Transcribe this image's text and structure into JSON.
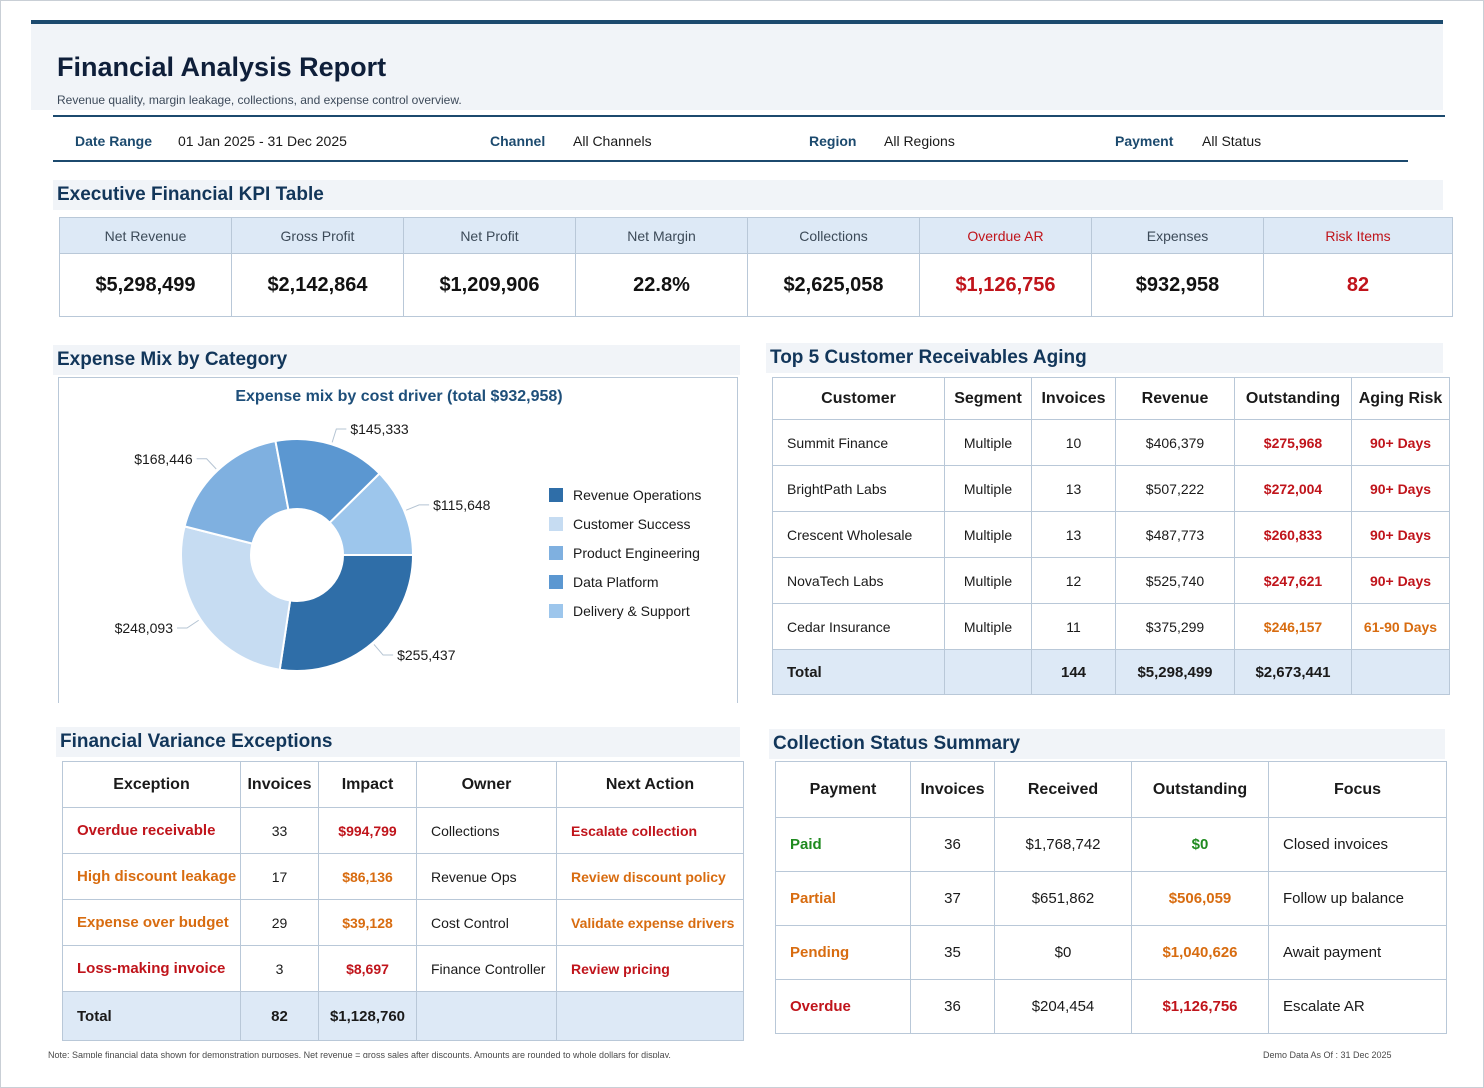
{
  "header": {
    "title": "Financial Analysis Report",
    "subtitle": "Revenue quality, margin leakage, collections, and expense control overview."
  },
  "filters": [
    {
      "label": "Date Range",
      "value": "01 Jan 2025 - 31 Dec 2025"
    },
    {
      "label": "Channel",
      "value": "All Channels"
    },
    {
      "label": "Region",
      "value": "All Regions"
    },
    {
      "label": "Payment",
      "value": "All Status"
    }
  ],
  "kpi": {
    "section_title": "Executive Financial KPI Table",
    "headers": [
      "Net Revenue",
      "Gross Profit",
      "Net Profit",
      "Net Margin",
      "Collections",
      "Overdue AR",
      "Expenses",
      "Risk Items"
    ],
    "values": [
      "$5,298,499",
      "$2,142,864",
      "$1,209,906",
      "22.8%",
      "$2,625,058",
      "$1,126,756",
      "$932,958",
      "82"
    ],
    "alert_color": "#c0141b"
  },
  "expense_mix": {
    "section_title": "Expense Mix by Category"
  },
  "chart_data": {
    "type": "pie",
    "title": "Expense mix by cost driver (total $932,958)",
    "categories": [
      "Revenue Operations",
      "Customer Success",
      "Product Engineering",
      "Data Platform",
      "Delivery & Support"
    ],
    "values": [
      255437,
      248093,
      168446,
      145333,
      115648
    ],
    "value_labels": [
      "$255,437",
      "$248,093",
      "$168,446",
      "$145,333",
      "$115,648"
    ],
    "colors": [
      "#2f6ea8",
      "#c6dcf2",
      "#7fb0e0",
      "#5b97d1",
      "#9dc6ec"
    ],
    "donut": true,
    "legend": "right"
  },
  "receivables": {
    "section_title": "Top 5 Customer Receivables Aging",
    "headers": [
      "Customer",
      "Segment",
      "Invoices",
      "Revenue",
      "Outstanding",
      "Aging Risk"
    ],
    "rows": [
      [
        "Summit Finance",
        "Multiple",
        "10",
        "$406,379",
        "$275,968",
        "90+ Days"
      ],
      [
        "BrightPath Labs",
        "Multiple",
        "13",
        "$507,222",
        "$272,004",
        "90+ Days"
      ],
      [
        "Crescent Wholesale",
        "Multiple",
        "13",
        "$487,773",
        "$260,833",
        "90+ Days"
      ],
      [
        "NovaTech Labs",
        "Multiple",
        "12",
        "$525,740",
        "$247,621",
        "90+ Days"
      ],
      [
        "Cedar Insurance",
        "Multiple",
        "11",
        "$375,299",
        "$246,157",
        "61-90 Days"
      ]
    ],
    "total": [
      "Total",
      "",
      "144",
      "$5,298,499",
      "$2,673,441",
      ""
    ]
  },
  "variance": {
    "section_title": "Financial Variance Exceptions",
    "headers": [
      "Exception",
      "Invoices",
      "Impact",
      "Owner",
      "Next Action"
    ],
    "rows": [
      [
        "Overdue receivable",
        "33",
        "$994,799",
        "Collections",
        "Escalate collection"
      ],
      [
        "High discount leakage",
        "17",
        "$86,136",
        "Revenue Ops",
        "Review discount policy"
      ],
      [
        "Expense over budget",
        "29",
        "$39,128",
        "Cost Control",
        "Validate expense drivers"
      ],
      [
        "Loss-making invoice",
        "3",
        "$8,697",
        "Finance Controller",
        "Review pricing"
      ]
    ],
    "total": [
      "Total",
      "82",
      "$1,128,760",
      "",
      ""
    ]
  },
  "collections": {
    "section_title": "Collection Status Summary",
    "headers": [
      "Payment",
      "Invoices",
      "Received",
      "Outstanding",
      "Focus"
    ],
    "rows": [
      [
        "Paid",
        "36",
        "$1,768,742",
        "$0",
        "Closed invoices"
      ],
      [
        "Partial",
        "37",
        "$651,862",
        "$506,059",
        "Follow up balance"
      ],
      [
        "Pending",
        "35",
        "$0",
        "$1,040,626",
        "Await payment"
      ],
      [
        "Overdue",
        "36",
        "$204,454",
        "$1,126,756",
        "Escalate AR"
      ]
    ]
  },
  "footer": {
    "note": "Note: Sample financial data shown for demonstration purposes. Net revenue = gross sales after discounts. Amounts are rounded to whole dollars for display.",
    "as_of": "Demo Data As Of : 31 Dec 2025"
  }
}
